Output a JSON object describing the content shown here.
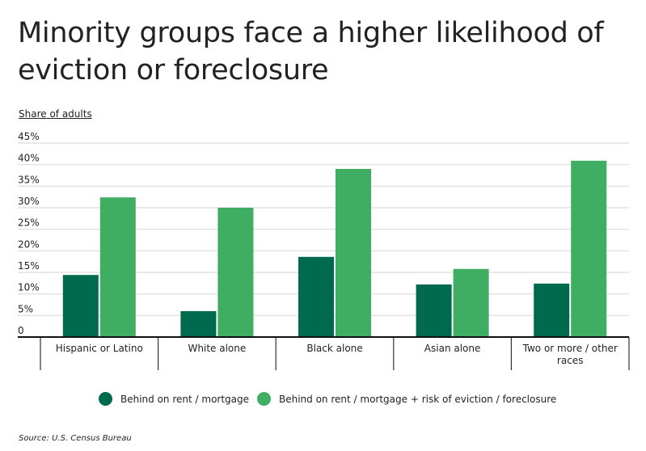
{
  "chart_data": {
    "type": "bar",
    "title": "Minority groups face a higher likelihood of eviction or foreclosure",
    "ylabel": "Share of adults",
    "xlabel": "",
    "ylim": [
      0,
      45
    ],
    "yticks": [
      0,
      5,
      10,
      15,
      20,
      25,
      30,
      35,
      40,
      45
    ],
    "ytick_labels": [
      "0",
      "5%",
      "10%",
      "15%",
      "20%",
      "25%",
      "30%",
      "35%",
      "40%",
      "45%"
    ],
    "grid": true,
    "legend_placement": "bottom",
    "categories": [
      "Hispanic or Latino",
      "White alone",
      "Black alone",
      "Asian alone",
      "Two or more / other races"
    ],
    "series": [
      {
        "name": "Behind on rent / mortgage",
        "color": "#006a4e",
        "values": [
          14.4,
          6.0,
          18.6,
          12.2,
          12.4
        ]
      },
      {
        "name": "Behind on rent / mortgage + risk of eviction / foreclosure",
        "color": "#3fae62",
        "values": [
          32.4,
          30.0,
          39.0,
          15.8,
          40.9
        ]
      }
    ]
  },
  "source": "Source:  U.S. Census Bureau"
}
